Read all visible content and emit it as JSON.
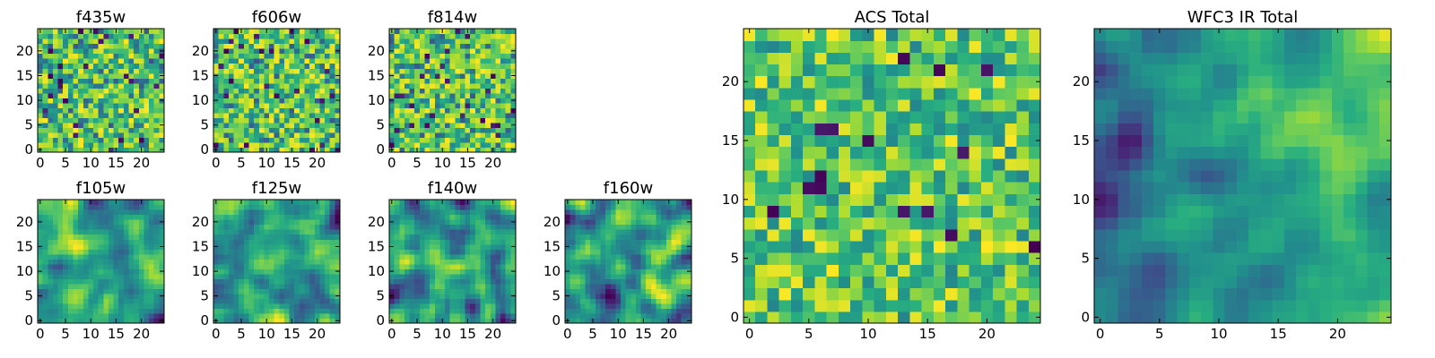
{
  "chart_data": {
    "type": "heatmap",
    "colormap": "viridis",
    "grid": false,
    "legend": "none",
    "panels": [
      {
        "name": "f435w",
        "title": "f435w",
        "grid_size": 25,
        "xlim": [
          -0.5,
          24.5
        ],
        "ylim": [
          -0.5,
          24.5
        ],
        "xticks": [
          0,
          5,
          10,
          15,
          20
        ],
        "yticks": [
          0,
          5,
          10,
          15,
          20
        ],
        "pattern": "noise",
        "seed": 11
      },
      {
        "name": "f606w",
        "title": "f606w",
        "grid_size": 25,
        "xlim": [
          -0.5,
          24.5
        ],
        "ylim": [
          -0.5,
          24.5
        ],
        "xticks": [
          0,
          5,
          10,
          15,
          20
        ],
        "yticks": [
          0,
          5,
          10,
          15,
          20
        ],
        "pattern": "noise",
        "seed": 23
      },
      {
        "name": "f814w",
        "title": "f814w",
        "grid_size": 25,
        "xlim": [
          -0.5,
          24.5
        ],
        "ylim": [
          -0.5,
          24.5
        ],
        "xticks": [
          0,
          5,
          10,
          15,
          20
        ],
        "yticks": [
          0,
          5,
          10,
          15,
          20
        ],
        "pattern": "noise",
        "seed": 37
      },
      {
        "name": "f105w",
        "title": "f105w",
        "grid_size": 25,
        "xlim": [
          -0.5,
          24.5
        ],
        "ylim": [
          -0.5,
          24.5
        ],
        "xticks": [
          0,
          5,
          10,
          15,
          20
        ],
        "yticks": [
          0,
          5,
          10,
          15,
          20
        ],
        "pattern": "smooth",
        "seed": 41
      },
      {
        "name": "f125w",
        "title": "f125w",
        "grid_size": 25,
        "xlim": [
          -0.5,
          24.5
        ],
        "ylim": [
          -0.5,
          24.5
        ],
        "xticks": [
          0,
          5,
          10,
          15,
          20
        ],
        "yticks": [
          0,
          5,
          10,
          15,
          20
        ],
        "pattern": "smooth",
        "seed": 53
      },
      {
        "name": "f140w",
        "title": "f140w",
        "grid_size": 25,
        "xlim": [
          -0.5,
          24.5
        ],
        "ylim": [
          -0.5,
          24.5
        ],
        "xticks": [
          0,
          5,
          10,
          15,
          20
        ],
        "yticks": [
          0,
          5,
          10,
          15,
          20
        ],
        "pattern": "smooth",
        "seed": 67
      },
      {
        "name": "f160w",
        "title": "f160w",
        "grid_size": 25,
        "xlim": [
          -0.5,
          24.5
        ],
        "ylim": [
          -0.5,
          24.5
        ],
        "xticks": [
          0,
          5,
          10,
          15,
          20
        ],
        "yticks": [
          0,
          5,
          10,
          15,
          20
        ],
        "pattern": "smooth",
        "seed": 79
      },
      {
        "name": "acs-total",
        "title": "ACS Total",
        "grid_size": 25,
        "xlim": [
          -0.5,
          24.5
        ],
        "ylim": [
          -0.5,
          24.5
        ],
        "xticks": [
          0,
          5,
          10,
          15,
          20
        ],
        "yticks": [
          0,
          5,
          10,
          15,
          20
        ],
        "pattern": "noise-mild",
        "seed": 97
      },
      {
        "name": "wfc3-ir-total",
        "title": "WFC3 IR Total",
        "grid_size": 25,
        "xlim": [
          -0.5,
          24.5
        ],
        "ylim": [
          -0.5,
          24.5
        ],
        "xticks": [
          0,
          5,
          10,
          15,
          20
        ],
        "yticks": [
          0,
          5,
          10,
          15,
          20
        ],
        "pattern": "gradient",
        "seed": 113
      }
    ]
  }
}
